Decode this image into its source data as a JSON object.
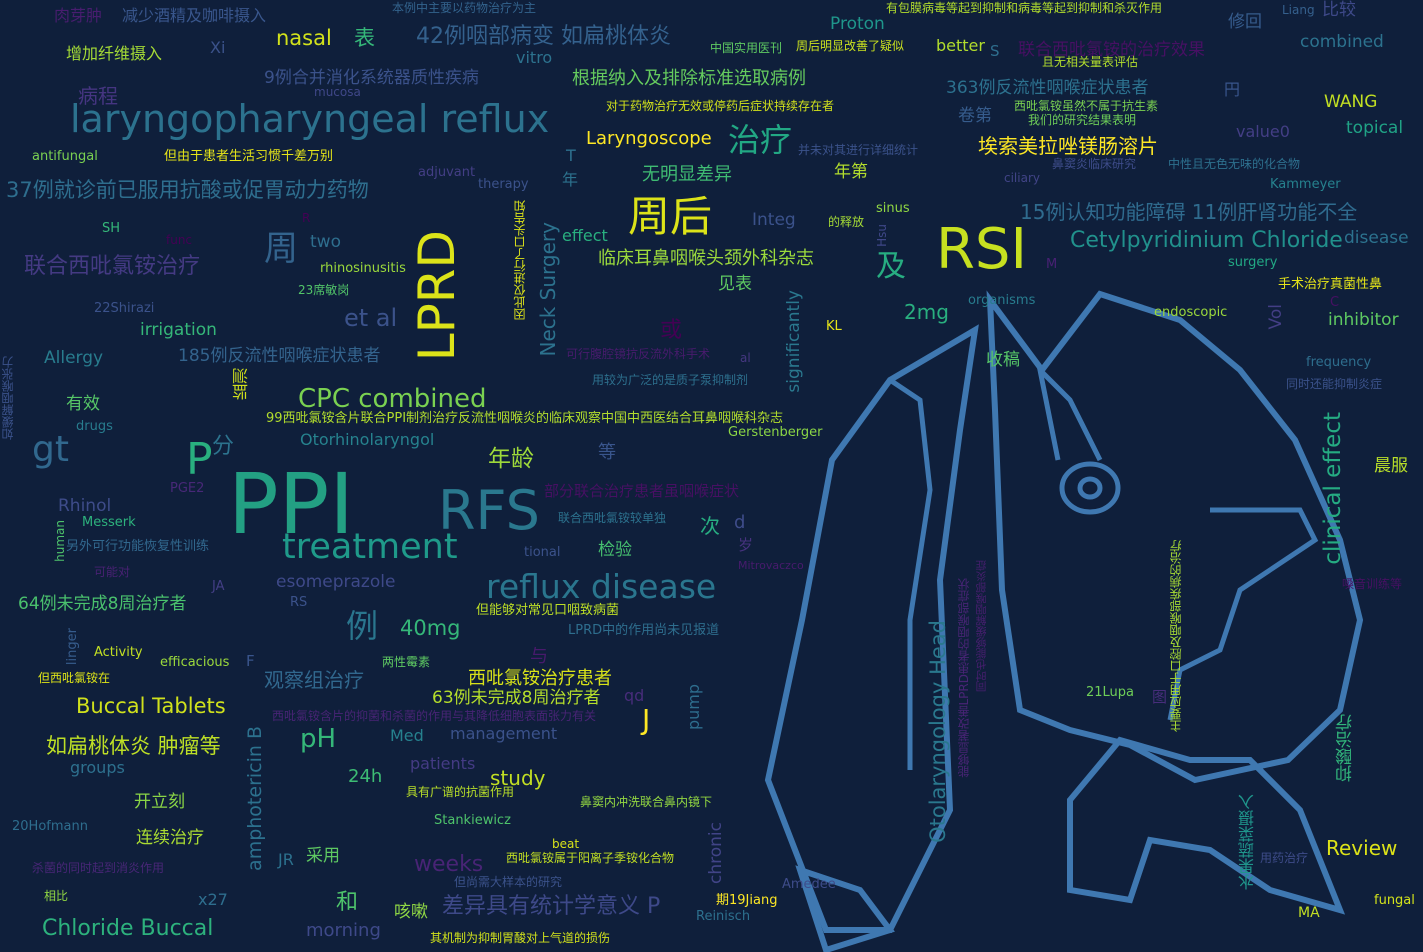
{
  "colors": {
    "background": "#0f1f3b",
    "figure_outline": "#3f78b1"
  },
  "figure": {
    "icon": "person-profile-silhouette-icon"
  },
  "words": [
    {
      "t": "PPI",
      "c": "#23a083"
    },
    {
      "t": "RSI",
      "c": "#c7e020"
    },
    {
      "t": "LPRD",
      "c": "#dce319"
    },
    {
      "t": "RFS",
      "c": "#2a788e"
    },
    {
      "t": "周后",
      "c": "#dce319"
    },
    {
      "t": "laryngopharyngeal reflux",
      "c": "#2c728e"
    },
    {
      "t": "reflux disease",
      "c": "#2a768e"
    },
    {
      "t": "treatment",
      "c": "#1f9a8a"
    },
    {
      "t": "CPC combined",
      "c": "#7ad151"
    },
    {
      "t": "gt",
      "c": "#31688e"
    },
    {
      "t": "P",
      "c": "#29af7f"
    },
    {
      "t": "分",
      "c": "#2c738e"
    },
    {
      "t": "治疗",
      "c": "#22a884"
    },
    {
      "t": "周",
      "c": "#33638d"
    },
    {
      "t": "例",
      "c": "#2a768e"
    },
    {
      "t": "及",
      "c": "#27ad81"
    },
    {
      "t": "et al",
      "c": "#3b528b"
    },
    {
      "t": "Cetylpyridinium Chloride",
      "c": "#21918c"
    },
    {
      "t": "埃索美拉唑镁肠溶片",
      "c": "#fde725"
    },
    {
      "t": "Buccal Tablets",
      "c": "#d0e11c"
    },
    {
      "t": "如扁桃体炎 肿瘤等",
      "c": "#bddf26"
    },
    {
      "t": "42例咽部病变 如扁桃体炎",
      "c": "#34618d"
    },
    {
      "t": "37例就诊前已服用抗酸或促胃动力药物",
      "c": "#2e6e8e"
    },
    {
      "t": "联合西吡氯铵治疗",
      "c": "#443a83"
    },
    {
      "t": "15例认知功能障碍 11例肝肾功能不全",
      "c": "#2f6b8e"
    },
    {
      "t": "差异具有统计学意义 P",
      "c": "#3e4989"
    },
    {
      "t": "Chloride Buccal",
      "c": "#2db27d"
    },
    {
      "t": "clinical effect",
      "c": "#25ab82"
    },
    {
      "t": "Otolaryngology Head",
      "c": "#2a788e"
    },
    {
      "t": "Neck Surgery",
      "c": "#2c728e"
    },
    {
      "t": "amphotericin B",
      "c": "#2c718e"
    },
    {
      "t": "chronic",
      "c": "#414487"
    },
    {
      "t": "significantly",
      "c": "#2a788e"
    },
    {
      "t": "临床耳鼻咽喉头颈外科杂志",
      "c": "#9bd93c"
    },
    {
      "t": "西吡氯铵治疗患者",
      "c": "#d8e219"
    },
    {
      "t": "63例未完成8周治疗者",
      "c": "#b5de2b"
    },
    {
      "t": "64例未完成8周治疗者",
      "c": "#4ac16d"
    },
    {
      "t": "观察组治疗",
      "c": "#31688e"
    },
    {
      "t": "9例合并消化系统器质性疾病",
      "c": "#3b528b"
    },
    {
      "t": "根据纳入及排除标准选取病例",
      "c": "#65cb5e"
    },
    {
      "t": "363例反流性咽喉症状患者",
      "c": "#2c718e"
    },
    {
      "t": "185例反流性咽喉症状患者",
      "c": "#33638d"
    },
    {
      "t": "联合西吡氯铵的治疗效果",
      "c": "#471063"
    },
    {
      "t": "pH",
      "c": "#35b779"
    },
    {
      "t": "年龄",
      "c": "#9fda3a"
    },
    {
      "t": "nasal",
      "c": "#d2e21b"
    },
    {
      "t": "表",
      "c": "#35b779"
    },
    {
      "t": "40mg",
      "c": "#35b779"
    },
    {
      "t": "2mg",
      "c": "#29af7f"
    },
    {
      "t": "Laryngoscope",
      "c": "#fde725"
    },
    {
      "t": "无明显差异",
      "c": "#3fbc73"
    },
    {
      "t": "年第",
      "c": "#b2dd2d"
    },
    {
      "t": "Integ",
      "c": "#3b528b"
    },
    {
      "t": "effect",
      "c": "#29af7f"
    },
    {
      "t": "two",
      "c": "#2e6e8e"
    },
    {
      "t": "study",
      "c": "#c2df23"
    },
    {
      "t": "24h",
      "c": "#3dbc74"
    },
    {
      "t": "Review",
      "c": "#dde318"
    },
    {
      "t": "weeks",
      "c": "#482475"
    },
    {
      "t": "morning",
      "c": "#3e4989"
    },
    {
      "t": "management",
      "c": "#3b528b"
    },
    {
      "t": "patients",
      "c": "#443b84"
    },
    {
      "t": "groups",
      "c": "#2d708e"
    },
    {
      "t": "Med",
      "c": "#26818e"
    },
    {
      "t": "J",
      "c": "#fde725"
    },
    {
      "t": "qd",
      "c": "#472c7a"
    },
    {
      "t": "pump",
      "c": "#2e6e8e"
    },
    {
      "t": "与",
      "c": "#481a6c"
    },
    {
      "t": "或",
      "c": "#440154"
    },
    {
      "t": "和",
      "c": "#4ec36b"
    },
    {
      "t": "次",
      "c": "#27ad81"
    },
    {
      "t": "d",
      "c": "#3e4c8a"
    },
    {
      "t": "岁",
      "c": "#46327e"
    },
    {
      "t": "等",
      "c": "#39558c"
    },
    {
      "t": "检验",
      "c": "#46c06f"
    },
    {
      "t": "见表",
      "c": "#5ec962"
    },
    {
      "t": "收稿",
      "c": "#56c667"
    },
    {
      "t": "晨服",
      "c": "#b8de29"
    },
    {
      "t": "卷第",
      "c": "#365c8d"
    },
    {
      "t": "抑酸治疗",
      "c": "#31b57b"
    },
    {
      "t": "水果蔬菜摄入",
      "c": "#1f958b"
    },
    {
      "t": "esomeprazole",
      "c": "#3e4989"
    },
    {
      "t": "Otorhinolaryngol",
      "c": "#26828e"
    },
    {
      "t": "irrigation",
      "c": "#35b779"
    },
    {
      "t": "Allergy",
      "c": "#287c8e"
    },
    {
      "t": "有效",
      "c": "#56c667"
    },
    {
      "t": "肉芽肿",
      "c": "#481d6f"
    },
    {
      "t": "减少酒精及咖啡摄入",
      "c": "#39568c"
    },
    {
      "t": "增加纤维摄入",
      "c": "#a5db36"
    },
    {
      "t": "Xi",
      "c": "#3b528b"
    },
    {
      "t": "病程",
      "c": "#453581"
    },
    {
      "t": "vitro",
      "c": "#2c728e"
    },
    {
      "t": "Proton",
      "c": "#1f968b"
    },
    {
      "t": "better",
      "c": "#b2dd2d"
    },
    {
      "t": "combined",
      "c": "#2c728e"
    },
    {
      "t": "修回",
      "c": "#365c8d"
    },
    {
      "t": "比较",
      "c": "#3e4989"
    },
    {
      "t": "WANG",
      "c": "#c2df23"
    },
    {
      "t": "topical",
      "c": "#20a386"
    },
    {
      "t": "value0",
      "c": "#433e85"
    },
    {
      "t": "disease",
      "c": "#2c728e"
    },
    {
      "t": "inhibitor",
      "c": "#5ec962"
    },
    {
      "t": "Vol",
      "c": "#433e85"
    },
    {
      "t": "Rhinol",
      "c": "#3e4c8a"
    },
    {
      "t": "开立刻",
      "c": "#8bd646"
    },
    {
      "t": "连续治疗",
      "c": "#aadc32"
    },
    {
      "t": "采用",
      "c": "#5ec962"
    },
    {
      "t": "咳嗽",
      "c": "#8fd744"
    },
    {
      "t": "JR",
      "c": "#2c718e"
    },
    {
      "t": "x27",
      "c": "#2e6e8e"
    },
    {
      "t": "年",
      "c": "#2c728e"
    },
    {
      "t": "T",
      "c": "#2d708e"
    },
    {
      "t": "监测",
      "c": "#d2e21b"
    },
    {
      "t": "R",
      "c": "#440154"
    },
    {
      "t": "F",
      "c": "#39558c"
    },
    {
      "t": "C",
      "c": "#471063"
    },
    {
      "t": "M",
      "c": "#482173"
    },
    {
      "t": "本例中主要以药物治疗为主",
      "c": "#33638d"
    },
    {
      "t": "有包膜病毒等起到抑制和病毒等起到抑制和杀灭作用",
      "c": "#b2dd2d"
    },
    {
      "t": "Liang",
      "c": "#35608d"
    },
    {
      "t": "中国实用医刊",
      "c": "#5ec962"
    },
    {
      "t": "周后明显改善了疑似",
      "c": "#cae11f"
    },
    {
      "t": "且无相关量表评估",
      "c": "#b2dd2d"
    },
    {
      "t": "mucosa",
      "c": "#3f4788"
    },
    {
      "t": "对于药物治疗无效或停药后症状持续存在者",
      "c": "#d2e21b"
    },
    {
      "t": "西吡氯铵虽然不属于抗生素",
      "c": "#7ad151"
    },
    {
      "t": "我们的研究结果表明",
      "c": "#6ece58"
    },
    {
      "t": "antifungal",
      "c": "#7ad151"
    },
    {
      "t": "但由于患者生活习惯千差万别",
      "c": "#e5e419"
    },
    {
      "t": "并未对其进行详细统计",
      "c": "#3b528b"
    },
    {
      "t": "鼻窦炎临床研究",
      "c": "#3e4c8a"
    },
    {
      "t": "中性且无色无味的化合物",
      "c": "#2d708e"
    },
    {
      "t": "adjuvant",
      "c": "#433e85"
    },
    {
      "t": "therapy",
      "c": "#3b528b"
    },
    {
      "t": "ciliary",
      "c": "#414487"
    },
    {
      "t": "Kammeyer",
      "c": "#26828e"
    },
    {
      "t": "的释放",
      "c": "#a5db36"
    },
    {
      "t": "sinus",
      "c": "#90d743"
    },
    {
      "t": "Hsu",
      "c": "#3f4788"
    },
    {
      "t": "SH",
      "c": "#35b779"
    },
    {
      "t": "func",
      "c": "#440154"
    },
    {
      "t": "rhinosinusitis",
      "c": "#9bd93c"
    },
    {
      "t": "23席敏岗",
      "c": "#52c569"
    },
    {
      "t": "surgery",
      "c": "#22a884"
    },
    {
      "t": "手术治疗真菌性鼻",
      "c": "#e5e419"
    },
    {
      "t": "22Shirazi",
      "c": "#3b528b"
    },
    {
      "t": "organisms",
      "c": "#287c8e"
    },
    {
      "t": "endoscopic",
      "c": "#9bd93c"
    },
    {
      "t": "KL",
      "c": "#e5e419"
    },
    {
      "t": "因此仅进行了口头告知",
      "c": "#dce319"
    },
    {
      "t": "可行腹腔镜抗反流外科手术",
      "c": "#481b6d"
    },
    {
      "t": "al",
      "c": "#453781"
    },
    {
      "t": "用较为广泛的是质子泵抑制剂",
      "c": "#2d708e"
    },
    {
      "t": "frequency",
      "c": "#2e6e8e"
    },
    {
      "t": "同时还能抑制炎症",
      "c": "#3b528b"
    },
    {
      "t": "如缓解咽喉张力",
      "c": "#3b528b"
    },
    {
      "t": "drugs",
      "c": "#287c8e"
    },
    {
      "t": "99西吡氯铵含片联合PPI制剂治疗反流性咽喉炎的临床观察中国中西医结合耳鼻咽喉科杂志",
      "c": "#b2dd2d"
    },
    {
      "t": "Gerstenberger",
      "c": "#8bd646"
    },
    {
      "t": "PGE2",
      "c": "#482878"
    },
    {
      "t": "部分联合治疗患者虽咽喉症状",
      "c": "#471063"
    },
    {
      "t": "human",
      "c": "#4ec36b"
    },
    {
      "t": "Messerk",
      "c": "#2db27d"
    },
    {
      "t": "另外可行功能恢复性训练",
      "c": "#31688e"
    },
    {
      "t": "联合西吡氯铵较单独",
      "c": "#2c728e"
    },
    {
      "t": "tional",
      "c": "#3b528b"
    },
    {
      "t": "可能对",
      "c": "#482173"
    },
    {
      "t": "JA",
      "c": "#433e85"
    },
    {
      "t": "RS",
      "c": "#3b528b"
    },
    {
      "t": "但能够对常见口咽致病菌",
      "c": "#bddf26"
    },
    {
      "t": "LPRD中的作用尚未见报道",
      "c": "#2e6e8e"
    },
    {
      "t": "linger",
      "c": "#365c8d"
    },
    {
      "t": "Activity",
      "c": "#c2df23"
    },
    {
      "t": "efficacious",
      "c": "#9bd93c"
    },
    {
      "t": "两性霉素",
      "c": "#5ec962"
    },
    {
      "t": "但西吡氯铵在",
      "c": "#dde318"
    },
    {
      "t": "西吡氯铵含片的抑菌和杀菌的作用与其降低细胞表面张力有关",
      "c": "#482475"
    },
    {
      "t": "具有广谱的抗菌作用",
      "c": "#b8de29"
    },
    {
      "t": "鼻窦内冲洗联合鼻内镜下",
      "c": "#93d741"
    },
    {
      "t": "Stankiewicz",
      "c": "#4ec36b"
    },
    {
      "t": "20Hofmann",
      "c": "#2e6e8e"
    },
    {
      "t": "杀菌的同时起到消炎作用",
      "c": "#482677"
    },
    {
      "t": "相比",
      "c": "#90d743"
    },
    {
      "t": "beat",
      "c": "#d8e219"
    },
    {
      "t": "西吡氯铵属于阳离子季铵化合物",
      "c": "#c2df23"
    },
    {
      "t": "但尚需大样本的研究",
      "c": "#3b528b"
    },
    {
      "t": "Amedee",
      "c": "#3e4c8a"
    },
    {
      "t": "期19Jiang",
      "c": "#fde725"
    },
    {
      "t": "Reinisch",
      "c": "#2d708e"
    },
    {
      "t": "其机制为抑制胃酸对上气道的损伤",
      "c": "#d0e11c"
    },
    {
      "t": "MA",
      "c": "#c2df23"
    },
    {
      "t": "fungal",
      "c": "#d2e21b"
    },
    {
      "t": "用药治疗",
      "c": "#3e4c8a"
    },
    {
      "t": "嗓音训练等",
      "c": "#471063"
    },
    {
      "t": "21Lupa",
      "c": "#6ece58"
    },
    {
      "t": "图",
      "c": "#472d7b"
    },
    {
      "t": "主要应用于口腔及咽喉部疾病的治疗",
      "c": "#a8db34"
    },
    {
      "t": "能够显著改善LPRD患者的咽喉部症状",
      "c": "#482475"
    },
    {
      "t": "同时也能够缓解咽喉部炎症",
      "c": "#481f70"
    },
    {
      "t": "円",
      "c": "#39558c"
    },
    {
      "t": "S",
      "c": "#2e6e8e"
    },
    {
      "t": "Mitrovaczco",
      "c": "#481b6d"
    }
  ]
}
